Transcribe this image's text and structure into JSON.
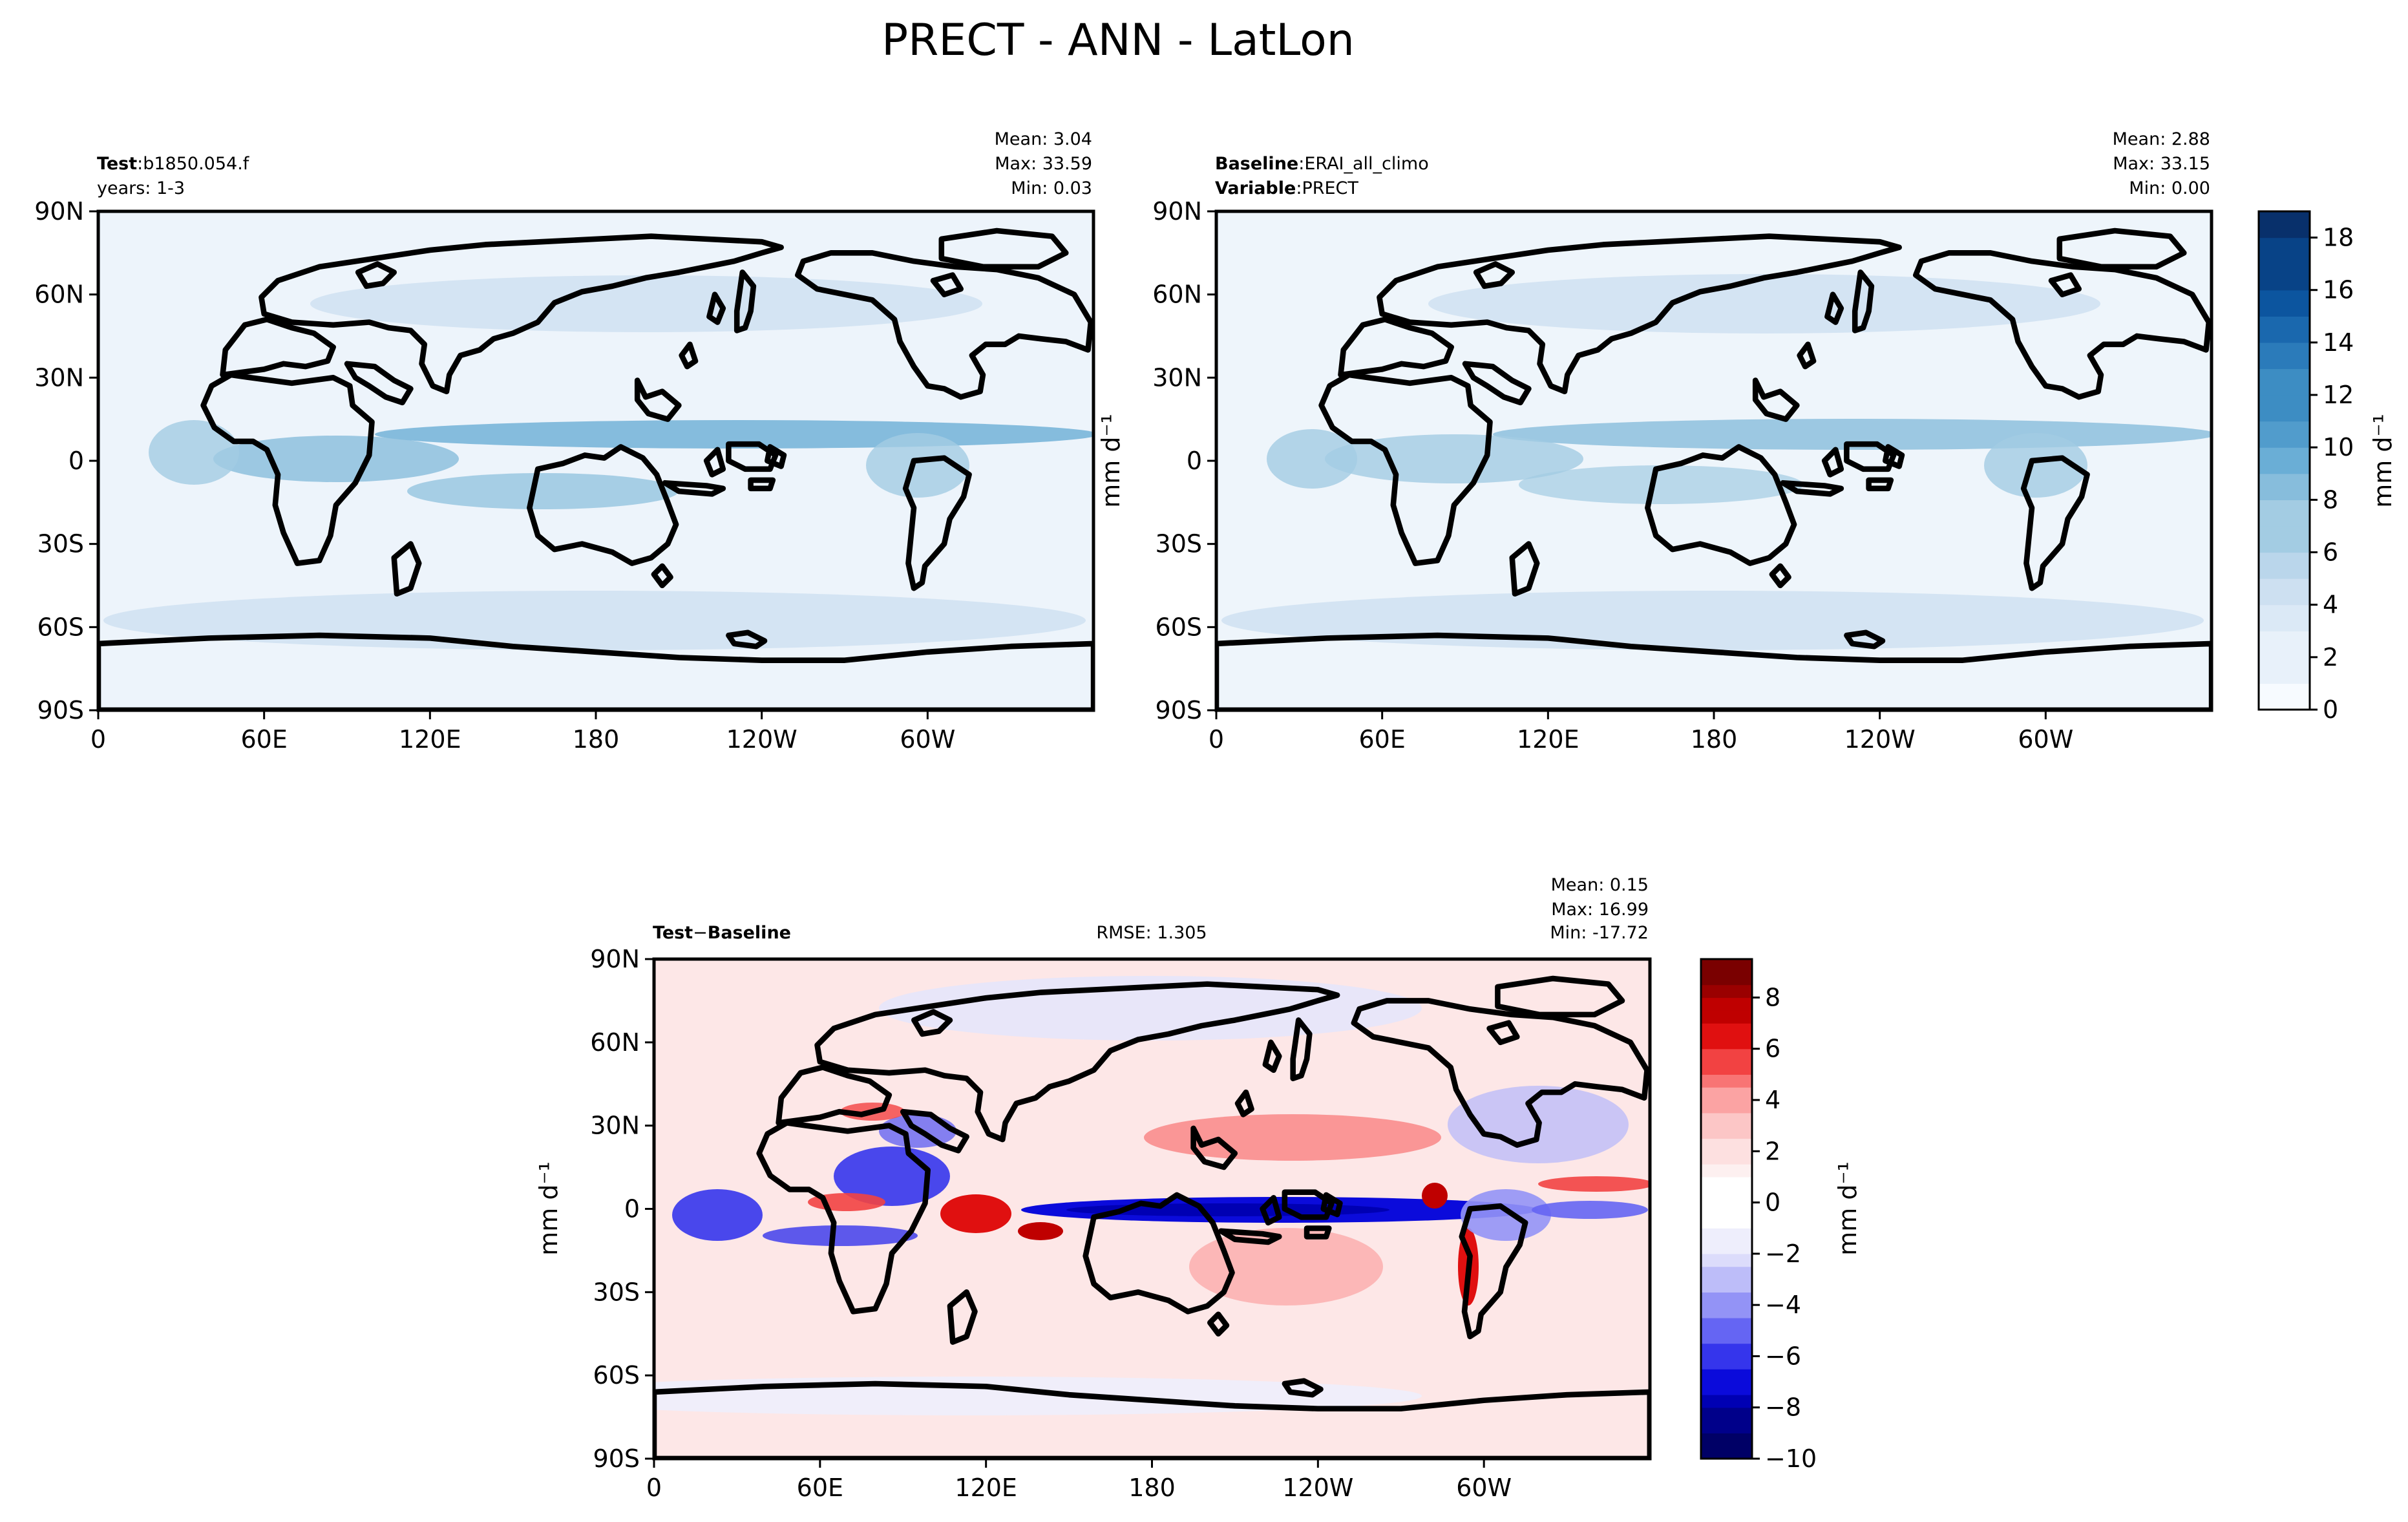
{
  "figure": {
    "title": "PRECT - ANN - LatLon"
  },
  "colors": {
    "blues": [
      "#f7fbff",
      "#e8f1fa",
      "#dbe9f6",
      "#cde0f1",
      "#bad6eb",
      "#a3cce3",
      "#87bddc",
      "#6aaed6",
      "#519ccc",
      "#3d8dc3",
      "#2b7bba",
      "#1a68ae",
      "#0c559f",
      "#084387",
      "#08306b"
    ],
    "reds": [
      "#ffffff",
      "#fdf0f0",
      "#fde0e0",
      "#fcc6c6",
      "#fba3a3",
      "#f87474",
      "#f24242",
      "#e01010",
      "#bf0000",
      "#9a0000",
      "#7a0000"
    ],
    "neg": [
      "#ffffff",
      "#eeeefc",
      "#dcdcfb",
      "#bdbdf9",
      "#9393f6",
      "#6565f3",
      "#3535ec",
      "#0b0bdb",
      "#0000b3",
      "#00008a",
      "#000066"
    ]
  },
  "panels": {
    "test": {
      "name_key": "Test",
      "name_sep": ":",
      "name_val": "b1850.054.f",
      "line2": "years: 1-3",
      "stats": [
        "Mean:  3.04",
        "Max: 33.59",
        "Min:  0.03"
      ]
    },
    "baseline": {
      "name_key": "Baseline",
      "name_sep": ":",
      "name_val": "ERAI_all_climo",
      "line2_key": "Variable",
      "line2_sep": ":",
      "line2_val": "PRECT",
      "stats": [
        "Mean:  2.88",
        "Max: 33.15",
        "Min:  0.00"
      ]
    },
    "diff": {
      "name_a": "Test",
      "name_op": "−",
      "name_b": "Baseline",
      "rmse": "RMSE: 1.305",
      "stats": [
        "Mean:  0.15",
        "Max: 16.99",
        "Min: -17.72"
      ]
    }
  },
  "axes": {
    "xticks": [
      "0",
      "60E",
      "120E",
      "180",
      "120W",
      "60W"
    ],
    "yticks": [
      "90N",
      "60N",
      "30N",
      "0",
      "30S",
      "60S",
      "90S"
    ],
    "ylabel": "mm d⁻¹"
  },
  "colorbars": {
    "top": {
      "label": "mm d⁻¹",
      "ticks": [
        "0",
        "2",
        "4",
        "6",
        "8",
        "10",
        "12",
        "14",
        "16",
        "18"
      ],
      "range": [
        0,
        19
      ]
    },
    "diff": {
      "label": "mm d⁻¹",
      "ticks": [
        "−10",
        "−8",
        "−6",
        "−4",
        "−2",
        "0",
        "2",
        "4",
        "6",
        "8"
      ],
      "range": [
        -10,
        9.5
      ]
    }
  },
  "chart_data": [
    {
      "type": "heatmap",
      "name": "Test",
      "x_range": [
        0,
        360
      ],
      "y_range": [
        -90,
        90
      ],
      "color_range": [
        0,
        19
      ],
      "xticks": [
        "0",
        "60E",
        "120E",
        "180",
        "120W",
        "60W"
      ],
      "yticks": [
        "90N",
        "60N",
        "30N",
        "0",
        "30S",
        "60S",
        "90S"
      ],
      "stats": {
        "mean": 3.04,
        "max": 33.59,
        "min": 0.03
      }
    },
    {
      "type": "heatmap",
      "name": "Baseline",
      "x_range": [
        0,
        360
      ],
      "y_range": [
        -90,
        90
      ],
      "color_range": [
        0,
        19
      ],
      "xticks": [
        "0",
        "60E",
        "120E",
        "180",
        "120W",
        "60W"
      ],
      "yticks": [
        "90N",
        "60N",
        "30N",
        "0",
        "30S",
        "60S",
        "90S"
      ],
      "stats": {
        "mean": 2.88,
        "max": 33.15,
        "min": 0.0
      }
    },
    {
      "type": "heatmap",
      "name": "Test − Baseline",
      "x_range": [
        0,
        360
      ],
      "y_range": [
        -90,
        90
      ],
      "color_range": [
        -10,
        9.5
      ],
      "xticks": [
        "0",
        "60E",
        "120E",
        "180",
        "120W",
        "60W"
      ],
      "yticks": [
        "90N",
        "60N",
        "30N",
        "0",
        "30S",
        "60S",
        "90S"
      ],
      "stats": {
        "mean": 0.15,
        "max": 16.99,
        "min": -17.72,
        "rmse": 1.305
      }
    }
  ]
}
